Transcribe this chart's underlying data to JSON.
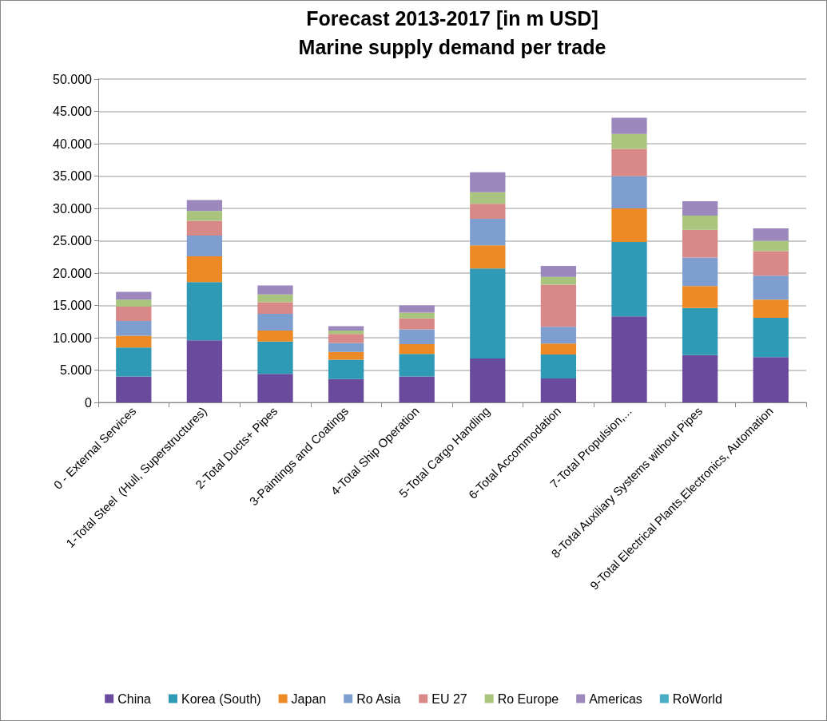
{
  "chart_data": {
    "type": "bar",
    "stacked": true,
    "title": "Forecast 2013-2017 [in m USD]",
    "subtitle": "Marine supply demand per trade",
    "categories": [
      "0 - External Services",
      "1-Total Steel  (Hull, Superstructures)",
      "2-Total Ducts+ Pipes",
      "3-Paintings and Coatings",
      "4-Total Ship Operation",
      "5-Total Cargo Handling",
      "6-Total Accommodation",
      "7-Total Propulsion,...",
      "8-Total Auxiliary Systems without Pipes",
      "9-Total Electrical Plants,Electronics, Automation"
    ],
    "series": [
      {
        "name": "China",
        "color": "#6a4a9c",
        "values": [
          4000,
          9600,
          4400,
          3600,
          4000,
          6800,
          3700,
          13300,
          7300,
          7000
        ]
      },
      {
        "name": "Korea (South)",
        "color": "#2e9ab6",
        "values": [
          4500,
          9000,
          5000,
          3000,
          3500,
          13900,
          3700,
          11500,
          7300,
          6100
        ]
      },
      {
        "name": "Japan",
        "color": "#ee8a26",
        "values": [
          1800,
          4000,
          1700,
          1200,
          1500,
          3600,
          1700,
          5200,
          3400,
          2800
        ]
      },
      {
        "name": "Ro Asia",
        "color": "#7f9ed0",
        "values": [
          2300,
          3200,
          2600,
          1400,
          2300,
          4100,
          2600,
          5000,
          4400,
          3700
        ]
      },
      {
        "name": "EU 27",
        "color": "#d98888",
        "values": [
          2200,
          2300,
          1800,
          1400,
          1700,
          2300,
          6500,
          4200,
          4300,
          3800
        ]
      },
      {
        "name": "Ro Europe",
        "color": "#a9c47c",
        "values": [
          1100,
          1500,
          1200,
          500,
          900,
          1800,
          1200,
          2300,
          2200,
          1600
        ]
      },
      {
        "name": "Americas",
        "color": "#9c88bc",
        "values": [
          1200,
          1700,
          1400,
          700,
          1100,
          3100,
          1700,
          2500,
          2200,
          1900
        ]
      },
      {
        "name": "RoWorld",
        "color": "#4bacc6",
        "values": [
          0,
          0,
          0,
          0,
          0,
          0,
          0,
          0,
          0,
          0
        ]
      }
    ],
    "ylim": [
      0,
      50000
    ],
    "yticks": [
      {
        "value": 0,
        "label": "0"
      },
      {
        "value": 5000,
        "label": "5.000"
      },
      {
        "value": 10000,
        "label": "10.000"
      },
      {
        "value": 15000,
        "label": "15.000"
      },
      {
        "value": 20000,
        "label": "20.000"
      },
      {
        "value": 25000,
        "label": "25.000"
      },
      {
        "value": 30000,
        "label": "30.000"
      },
      {
        "value": 35000,
        "label": "35.000"
      },
      {
        "value": 40000,
        "label": "40.000"
      },
      {
        "value": 45000,
        "label": "45.000"
      },
      {
        "value": 50000,
        "label": "50.000"
      }
    ],
    "grid": "y",
    "legend": "bottom"
  }
}
